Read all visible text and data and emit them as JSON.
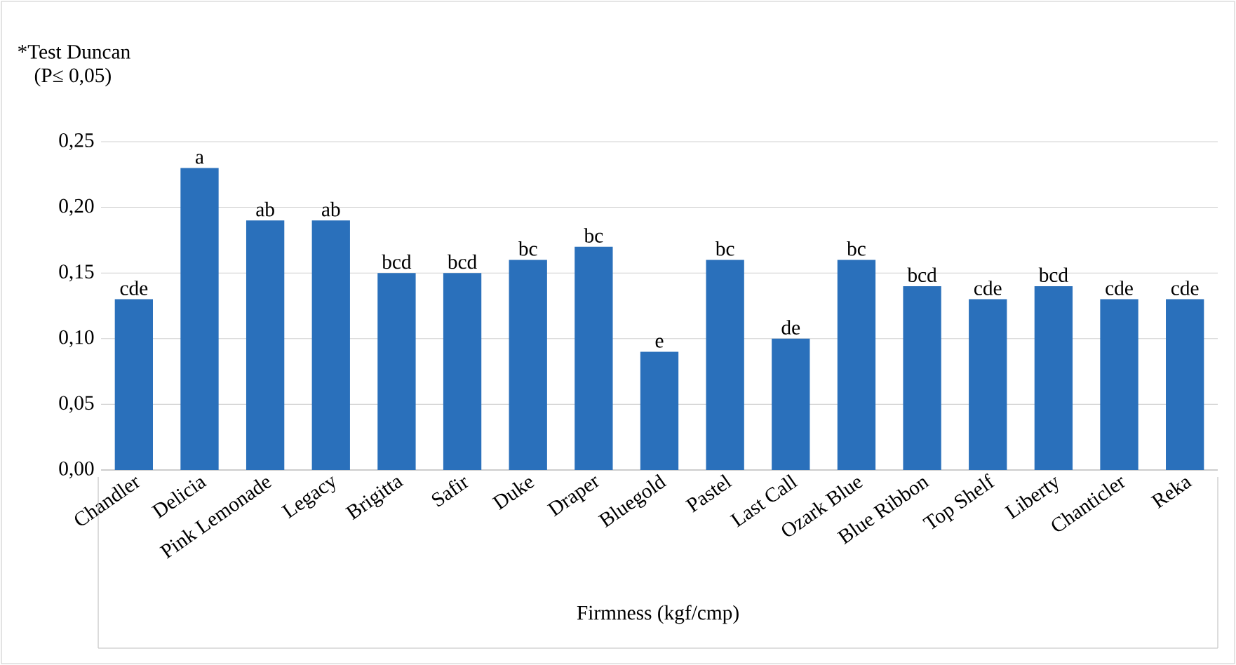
{
  "chart_data": {
    "type": "bar",
    "xlabel": "Firmness (kgf/cmp)",
    "categories": [
      "Chandler",
      "Delicia",
      "Pink Lemonade",
      "Legacy",
      "Brigitta",
      "Safir",
      "Duke",
      "Draper",
      "Bluegold",
      "Pastel",
      "Last Call",
      "Ozark Blue",
      "Blue Ribbon",
      "Top Shelf",
      "Liberty",
      "Chanticler",
      "Reka"
    ],
    "values": [
      0.13,
      0.23,
      0.19,
      0.19,
      0.15,
      0.15,
      0.16,
      0.17,
      0.09,
      0.16,
      0.1,
      0.16,
      0.14,
      0.13,
      0.14,
      0.13,
      0.13
    ],
    "value_labels": [
      "cde",
      "a",
      "ab",
      "ab",
      "bcd",
      "bcd",
      "bc",
      "bc",
      "e",
      "bc",
      "de",
      "bc",
      "bcd",
      "cde",
      "bcd",
      "cde",
      "cde"
    ],
    "color": "#2a70bb",
    "ylim": [
      0,
      0.25
    ],
    "yticks": [
      {
        "value": 0,
        "label": "0,00"
      },
      {
        "value": 0.05,
        "label": "0,05"
      },
      {
        "value": 0.1,
        "label": "0,10"
      },
      {
        "value": 0.15,
        "label": "0,15"
      },
      {
        "value": 0.2,
        "label": "0,20"
      },
      {
        "value": 0.25,
        "label": "0,25"
      }
    ],
    "grid": "y",
    "annotations": [
      "*Test Duncan",
      "(P≤ 0,05)"
    ]
  }
}
